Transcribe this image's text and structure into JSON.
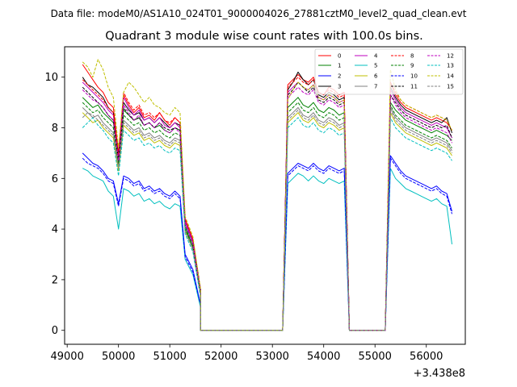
{
  "figure": {
    "supertitle": "Data file: modeM0/AS1A10_024T01_9000004026_27881cztM0_level2_quad_clean.evt"
  },
  "chart_data": {
    "type": "line",
    "title": "Quadrant 3 module wise count rates with 100.0s bins.",
    "xlabel": "",
    "ylabel": "",
    "x_offset_label": "+3.438e8",
    "xlim": [
      48950,
      56760
    ],
    "ylim": [
      -0.55,
      11.2
    ],
    "xticks": [
      49000,
      50000,
      51000,
      52000,
      53000,
      54000,
      55000,
      56000
    ],
    "xtick_labels": [
      "49000",
      "50000",
      "51000",
      "52000",
      "53000",
      "54000",
      "55000",
      "56000"
    ],
    "yticks": [
      0,
      2,
      4,
      6,
      8,
      10
    ],
    "ytick_labels": [
      "0",
      "2",
      "4",
      "6",
      "8",
      "10"
    ],
    "legend_position": "top-right",
    "segments": [
      {
        "x_start": 49300,
        "x_end": 51200
      },
      {
        "x_start": 51300,
        "x_end": 51600
      },
      {
        "x_start": 51600,
        "x_end": 53200
      },
      {
        "x_start": 53300,
        "x_end": 54400
      },
      {
        "x_start": 54500,
        "x_end": 55200
      },
      {
        "x_start": 55300,
        "x_end": 56500
      }
    ],
    "series": [
      {
        "name": "0",
        "color": "#ff0000",
        "dash": "solid",
        "s1": [
          10.5,
          10.2,
          9.9,
          9.6,
          9.4,
          9.0,
          8.8,
          7.0,
          9.3,
          8.9,
          8.6,
          8.8,
          8.4,
          8.5,
          8.3,
          8.6,
          8.3,
          8.1,
          8.4,
          8.2
        ],
        "tail": [
          4.4,
          3.6,
          1.6
        ],
        "s2": [
          9.7,
          9.9,
          10.1,
          9.9,
          9.8,
          10.0,
          9.4,
          9.3,
          9.6,
          9.5,
          9.3,
          9.4
        ],
        "s3": [
          9.8,
          9.3,
          9.0,
          8.8,
          8.7,
          8.6,
          8.5,
          8.4,
          8.3,
          8.4,
          8.3,
          8.2,
          7.9
        ]
      },
      {
        "name": "1",
        "color": "#008000",
        "dash": "solid",
        "s1": [
          9.2,
          9.0,
          8.8,
          8.9,
          8.6,
          8.4,
          8.2,
          6.8,
          8.7,
          8.5,
          8.3,
          8.4,
          8.1,
          8.2,
          8.0,
          8.1,
          7.9,
          7.8,
          8.0,
          7.9
        ],
        "tail": [
          4.1,
          3.3,
          1.4
        ],
        "s2": [
          8.8,
          9.0,
          9.2,
          8.9,
          8.8,
          9.0,
          8.7,
          8.6,
          8.8,
          8.7,
          8.5,
          8.6
        ],
        "s3": [
          9.0,
          8.7,
          8.5,
          8.3,
          8.2,
          8.1,
          8.0,
          7.9,
          7.8,
          7.9,
          7.8,
          7.7,
          7.5
        ]
      },
      {
        "name": "2",
        "color": "#0000ff",
        "dash": "solid",
        "s1": [
          7.0,
          6.8,
          6.6,
          6.5,
          6.3,
          6.0,
          5.9,
          5.0,
          6.1,
          6.0,
          5.8,
          5.9,
          5.6,
          5.7,
          5.5,
          5.6,
          5.4,
          5.3,
          5.5,
          5.3
        ],
        "tail": [
          3.0,
          2.4,
          1.0
        ],
        "s2": [
          6.2,
          6.4,
          6.6,
          6.5,
          6.4,
          6.6,
          6.4,
          6.3,
          6.5,
          6.4,
          6.3,
          6.4
        ],
        "s3": [
          6.9,
          6.6,
          6.3,
          6.1,
          6.0,
          5.9,
          5.8,
          5.7,
          5.6,
          5.7,
          5.5,
          5.4,
          4.7
        ]
      },
      {
        "name": "3",
        "color": "#000000",
        "dash": "solid",
        "s1": [
          10.0,
          9.7,
          9.6,
          9.4,
          9.2,
          8.8,
          8.6,
          6.9,
          9.0,
          8.7,
          8.5,
          8.6,
          8.3,
          8.4,
          8.2,
          8.4,
          8.2,
          8.0,
          8.2,
          8.1
        ],
        "tail": [
          4.3,
          3.5,
          1.6
        ],
        "s2": [
          9.5,
          9.8,
          10.2,
          9.9,
          9.7,
          9.9,
          9.3,
          9.2,
          9.4,
          9.3,
          9.1,
          9.2
        ],
        "s3": [
          9.6,
          9.2,
          8.9,
          8.7,
          8.6,
          8.5,
          8.4,
          8.3,
          8.2,
          8.3,
          8.2,
          8.4,
          7.8
        ]
      },
      {
        "name": "4",
        "color": "#bf00bf",
        "dash": "solid",
        "s1": [
          9.8,
          9.6,
          9.4,
          9.2,
          9.0,
          8.7,
          8.5,
          6.8,
          9.2,
          8.8,
          8.5,
          8.7,
          8.3,
          8.4,
          8.2,
          8.4,
          8.1,
          8.0,
          8.2,
          8.0
        ],
        "tail": [
          4.3,
          3.5,
          1.5
        ],
        "s2": [
          9.4,
          9.6,
          9.8,
          9.6,
          9.5,
          9.7,
          9.2,
          9.1,
          9.3,
          9.2,
          9.0,
          9.1
        ],
        "s3": [
          9.5,
          9.1,
          8.8,
          8.6,
          8.5,
          8.4,
          8.3,
          8.2,
          8.1,
          8.2,
          8.1,
          8.0,
          7.6
        ]
      },
      {
        "name": "5",
        "color": "#00bfbf",
        "dash": "solid",
        "s1": [
          6.4,
          6.3,
          6.1,
          6.0,
          5.9,
          5.5,
          5.3,
          4.0,
          5.6,
          5.5,
          5.3,
          5.4,
          5.1,
          5.2,
          5.0,
          5.1,
          4.9,
          4.8,
          5.0,
          4.9
        ],
        "tail": [
          2.8,
          2.2,
          0.9
        ],
        "s2": [
          5.8,
          6.0,
          6.2,
          6.1,
          5.9,
          6.1,
          5.9,
          5.8,
          6.0,
          5.9,
          5.8,
          5.9
        ],
        "s3": [
          6.4,
          6.0,
          5.8,
          5.6,
          5.5,
          5.4,
          5.3,
          5.2,
          5.1,
          5.2,
          5.0,
          4.9,
          3.4
        ]
      },
      {
        "name": "6",
        "color": "#bfbf00",
        "dash": "solid",
        "s1": [
          8.6,
          8.4,
          8.2,
          8.3,
          8.0,
          7.8,
          7.6,
          6.3,
          8.1,
          7.9,
          7.7,
          7.8,
          7.5,
          7.6,
          7.4,
          7.5,
          7.3,
          7.2,
          7.4,
          7.3
        ],
        "tail": [
          3.9,
          3.2,
          1.4
        ],
        "s2": [
          8.2,
          8.4,
          8.6,
          8.3,
          8.2,
          8.4,
          8.1,
          8.0,
          8.2,
          8.1,
          7.9,
          8.0
        ],
        "s3": [
          8.6,
          8.2,
          8.0,
          7.8,
          7.7,
          7.6,
          7.5,
          7.4,
          7.3,
          7.4,
          7.3,
          7.2,
          6.9
        ]
      },
      {
        "name": "7",
        "color": "#808080",
        "dash": "solid",
        "s1": [
          8.8,
          8.6,
          8.4,
          8.5,
          8.2,
          8.0,
          7.8,
          6.5,
          8.3,
          8.1,
          7.9,
          8.0,
          7.7,
          7.8,
          7.6,
          7.7,
          7.5,
          7.4,
          7.6,
          7.5
        ],
        "tail": [
          4.0,
          3.2,
          1.4
        ],
        "s2": [
          8.4,
          8.6,
          8.8,
          8.5,
          8.4,
          8.6,
          8.3,
          8.2,
          8.4,
          8.3,
          8.1,
          8.2
        ],
        "s3": [
          8.8,
          8.4,
          8.2,
          8.0,
          7.9,
          7.8,
          7.7,
          7.6,
          7.5,
          7.6,
          7.5,
          7.4,
          7.1
        ]
      },
      {
        "name": "8",
        "color": "#ff0000",
        "dash": "dashed",
        "s1": [
          9.9,
          9.7,
          9.5,
          9.3,
          9.1,
          8.8,
          8.6,
          6.9,
          9.4,
          9.0,
          8.7,
          8.9,
          8.5,
          8.6,
          8.4,
          8.6,
          8.3,
          8.2,
          8.4,
          8.2
        ],
        "tail": [
          4.4,
          3.6,
          1.6
        ],
        "s2": [
          9.6,
          9.8,
          10.0,
          9.8,
          9.7,
          9.9,
          9.4,
          9.3,
          9.5,
          9.4,
          9.2,
          9.3
        ],
        "s3": [
          9.8,
          9.4,
          9.1,
          8.9,
          8.8,
          8.7,
          8.6,
          8.5,
          8.4,
          8.5,
          8.4,
          8.3,
          7.9
        ]
      },
      {
        "name": "9",
        "color": "#008000",
        "dash": "dashed",
        "s1": [
          9.0,
          8.8,
          8.6,
          8.7,
          8.4,
          8.2,
          8.0,
          6.6,
          8.5,
          8.3,
          8.1,
          8.2,
          7.9,
          8.0,
          7.8,
          7.9,
          7.7,
          7.6,
          7.8,
          7.7
        ],
        "tail": [
          4.0,
          3.3,
          1.4
        ],
        "s2": [
          8.6,
          8.8,
          9.0,
          8.7,
          8.6,
          8.8,
          8.5,
          8.4,
          8.6,
          8.5,
          8.3,
          8.4
        ],
        "s3": [
          8.9,
          8.5,
          8.3,
          8.1,
          8.0,
          7.9,
          7.8,
          7.7,
          7.6,
          7.7,
          7.6,
          7.5,
          7.2
        ]
      },
      {
        "name": "10",
        "color": "#0000ff",
        "dash": "dashed",
        "s1": [
          6.8,
          6.6,
          6.5,
          6.4,
          6.2,
          5.9,
          5.8,
          4.9,
          6.0,
          5.9,
          5.7,
          5.8,
          5.5,
          5.6,
          5.4,
          5.5,
          5.3,
          5.2,
          5.4,
          5.2
        ],
        "tail": [
          2.9,
          2.3,
          1.0
        ],
        "s2": [
          6.1,
          6.3,
          6.5,
          6.4,
          6.3,
          6.5,
          6.3,
          6.2,
          6.4,
          6.3,
          6.2,
          6.3
        ],
        "s3": [
          6.8,
          6.5,
          6.2,
          6.0,
          5.9,
          5.8,
          5.7,
          5.6,
          5.5,
          5.6,
          5.4,
          5.3,
          4.6
        ]
      },
      {
        "name": "11",
        "color": "#000000",
        "dash": "dashed",
        "s1": [
          9.6,
          9.4,
          9.2,
          9.0,
          8.8,
          8.5,
          8.3,
          6.7,
          8.8,
          8.5,
          8.3,
          8.4,
          8.1,
          8.2,
          8.0,
          8.2,
          8.0,
          7.9,
          8.0,
          7.9
        ],
        "tail": [
          4.2,
          3.4,
          1.5
        ],
        "s2": [
          9.3,
          9.5,
          9.8,
          9.6,
          9.4,
          9.6,
          9.1,
          9.0,
          9.2,
          9.1,
          8.9,
          9.0
        ],
        "s3": [
          9.3,
          9.0,
          8.7,
          8.5,
          8.4,
          8.3,
          8.2,
          8.1,
          8.0,
          8.1,
          8.0,
          8.1,
          7.6
        ]
      },
      {
        "name": "12",
        "color": "#bf00bf",
        "dash": "dashed",
        "s1": [
          9.5,
          9.3,
          9.1,
          9.0,
          8.8,
          8.5,
          8.3,
          6.7,
          8.9,
          8.6,
          8.3,
          8.5,
          8.1,
          8.2,
          8.0,
          8.2,
          7.9,
          7.8,
          8.0,
          7.8
        ],
        "tail": [
          4.2,
          3.4,
          1.5
        ],
        "s2": [
          9.2,
          9.4,
          9.6,
          9.4,
          9.3,
          9.5,
          9.0,
          8.9,
          9.1,
          9.0,
          8.8,
          8.9
        ],
        "s3": [
          9.3,
          8.9,
          8.6,
          8.4,
          8.3,
          8.2,
          8.1,
          8.0,
          7.9,
          8.0,
          7.9,
          7.8,
          7.4
        ]
      },
      {
        "name": "13",
        "color": "#00bfbf",
        "dash": "dashed",
        "s1": [
          8.0,
          8.2,
          8.4,
          8.1,
          7.9,
          7.6,
          7.4,
          6.1,
          7.9,
          7.7,
          7.5,
          7.6,
          7.3,
          7.4,
          7.2,
          7.3,
          7.1,
          7.0,
          7.2,
          7.1
        ],
        "tail": [
          3.8,
          3.1,
          1.3
        ],
        "s2": [
          8.0,
          8.2,
          8.4,
          8.1,
          8.0,
          8.2,
          7.9,
          7.8,
          8.0,
          7.9,
          7.7,
          7.8
        ],
        "s3": [
          8.4,
          8.0,
          7.8,
          7.6,
          7.5,
          7.4,
          7.3,
          7.2,
          7.1,
          7.2,
          7.1,
          7.0,
          6.7
        ]
      },
      {
        "name": "14",
        "color": "#bfbf00",
        "dash": "dashed",
        "s1": [
          10.6,
          10.4,
          10.0,
          10.7,
          10.3,
          9.6,
          9.2,
          7.2,
          9.4,
          9.8,
          9.6,
          9.3,
          9.0,
          9.2,
          8.9,
          8.8,
          8.6,
          8.5,
          8.8,
          8.6
        ],
        "tail": [
          4.5,
          3.7,
          1.6
        ],
        "s2": [
          9.1,
          9.5,
          9.8,
          9.6,
          9.5,
          9.7,
          9.2,
          9.1,
          9.3,
          9.2,
          9.0,
          9.1
        ],
        "s3": [
          10.3,
          9.5,
          9.1,
          8.9,
          8.8,
          8.7,
          8.6,
          8.5,
          8.4,
          8.5,
          8.4,
          8.3,
          7.9
        ]
      },
      {
        "name": "15",
        "color": "#808080",
        "dash": "dashed",
        "s1": [
          8.4,
          8.6,
          8.5,
          8.3,
          8.1,
          7.9,
          7.7,
          6.4,
          8.2,
          8.0,
          7.8,
          7.9,
          7.6,
          7.7,
          7.5,
          7.6,
          7.4,
          7.3,
          7.5,
          7.4
        ],
        "tail": [
          3.9,
          3.2,
          1.4
        ],
        "s2": [
          8.3,
          8.5,
          8.7,
          8.4,
          8.3,
          8.5,
          8.2,
          8.1,
          8.3,
          8.2,
          8.0,
          8.1
        ],
        "s3": [
          8.7,
          8.3,
          8.1,
          7.9,
          7.8,
          7.7,
          7.6,
          7.5,
          7.4,
          7.5,
          7.4,
          7.3,
          7.0
        ]
      }
    ]
  }
}
